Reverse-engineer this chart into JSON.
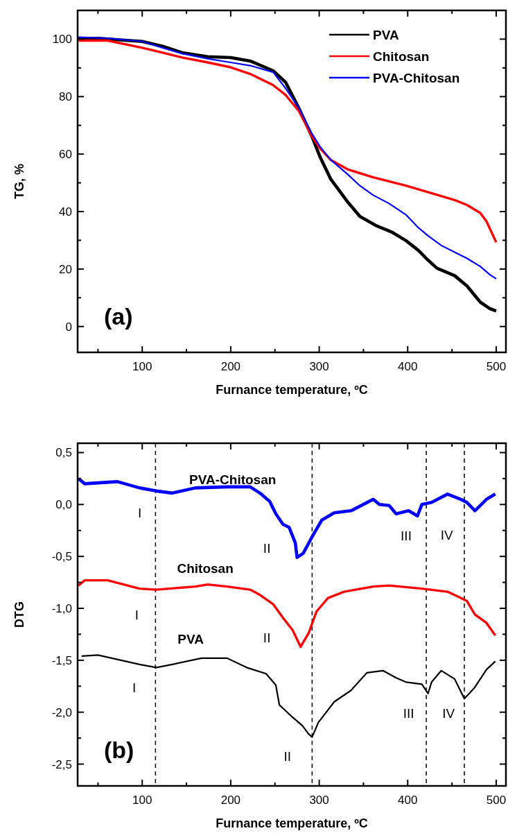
{
  "chart_data": [
    {
      "type": "line",
      "xlabel": "Furnance temperature, ºC",
      "ylabel": "TG, %",
      "xlim": [
        27,
        511
      ],
      "ylim": [
        -9,
        110
      ],
      "xticks": [
        {
          "value": 50,
          "label": null
        },
        100,
        {
          "value": 150,
          "label": null
        },
        200,
        {
          "value": 250,
          "label": null
        },
        300,
        {
          "value": 350,
          "label": null
        },
        400,
        {
          "value": 450,
          "label": null
        },
        500
      ],
      "yticks": [
        0,
        {
          "value": 10,
          "label": null
        },
        20,
        {
          "value": 30,
          "label": null
        },
        40,
        {
          "value": 50,
          "label": null
        },
        60,
        {
          "value": 70,
          "label": null
        },
        80,
        {
          "value": 90,
          "label": null
        },
        100
      ],
      "legend": "top right",
      "annotations": [
        "(a)"
      ],
      "series": [
        {
          "name": "PVA",
          "color": "#000000",
          "x": [
            28,
            50,
            100,
            123,
            145,
            174,
            200,
            222,
            248,
            262,
            277,
            292,
            301,
            313,
            332,
            346,
            365,
            383,
            398,
            412,
            423,
            433,
            453,
            467,
            482,
            493,
            500
          ],
          "values": [
            100.3,
            100.3,
            99.2,
            97.5,
            95.3,
            93.9,
            93.6,
            92.4,
            89,
            85,
            76,
            66,
            59,
            51.3,
            43.4,
            38.3,
            35,
            32.7,
            29.9,
            26.5,
            23.1,
            20.3,
            17.7,
            14.1,
            8.5,
            6.2,
            5.4
          ]
        },
        {
          "name": "Chitosan",
          "color": "#ff0000",
          "x": [
            28,
            61,
            100,
            123,
            145,
            174,
            200,
            222,
            248,
            262,
            277,
            292,
            301,
            313,
            332,
            361,
            398,
            416,
            453,
            467,
            482,
            489,
            500
          ],
          "values": [
            99.5,
            99.5,
            97,
            95.3,
            93.6,
            91.9,
            90.2,
            87.9,
            84,
            80.6,
            75,
            66,
            62,
            58,
            54.7,
            51.9,
            49,
            47.4,
            44,
            42.3,
            39.5,
            36.6,
            29.3
          ]
        },
        {
          "name": "PVA-Chitosan",
          "color": "#0000ff",
          "x": [
            28,
            61,
            100,
            123,
            145,
            174,
            200,
            222,
            248,
            262,
            277,
            292,
            301,
            313,
            332,
            346,
            361,
            379,
            398,
            412,
            423,
            438,
            453,
            467,
            482,
            493,
            500
          ],
          "values": [
            100.7,
            100.3,
            99.2,
            97,
            95,
            93.2,
            91.9,
            90.8,
            88.5,
            82.9,
            76.1,
            67,
            62.6,
            58,
            53,
            49,
            45.7,
            42.8,
            38.9,
            34.4,
            31.6,
            28.2,
            25.9,
            23.7,
            20.9,
            18,
            16.6
          ]
        }
      ]
    },
    {
      "type": "line",
      "xlabel": "Furnance temperature, ºC",
      "ylabel": "DTG",
      "xlim": [
        27,
        511
      ],
      "ylim": [
        -2.71,
        0.59
      ],
      "xticks": [
        {
          "value": 50,
          "label": null
        },
        100,
        {
          "value": 150,
          "label": null
        },
        200,
        {
          "value": 250,
          "label": null
        },
        300,
        {
          "value": 350,
          "label": null
        },
        400,
        {
          "value": 450,
          "label": null
        },
        500
      ],
      "yticks": [
        {
          "value": -2.5,
          "label": "-2,5"
        },
        {
          "value": -2.25,
          "label": null
        },
        {
          "value": -2,
          "label": "-2,0"
        },
        {
          "value": -1.75,
          "label": null
        },
        {
          "value": -1.5,
          "label": "-1,5"
        },
        {
          "value": -1.25,
          "label": null
        },
        {
          "value": -1,
          "label": "-1,0"
        },
        {
          "value": -0.75,
          "label": null
        },
        {
          "value": -0.5,
          "label": "-0,5"
        },
        {
          "value": -0.25,
          "label": null
        },
        {
          "value": 0,
          "label": "0,0"
        },
        {
          "value": 0.25,
          "label": null
        },
        {
          "value": 0.5,
          "label": "0,5"
        }
      ],
      "ref_lines": [
        {
          "axis": "x",
          "value": 115,
          "color": "#000000",
          "line_style": "dashed"
        },
        {
          "axis": "x",
          "value": 292,
          "color": "#000000",
          "line_style": "dashed"
        },
        {
          "axis": "x",
          "value": 421,
          "color": "#000000",
          "line_style": "dashed"
        },
        {
          "axis": "x",
          "value": 464,
          "color": "#000000",
          "line_style": "dashed"
        }
      ],
      "annotations": [
        "(b)",
        "I",
        "II",
        "III",
        "IV",
        "I",
        "II",
        "I",
        "III",
        "IV",
        "II"
      ],
      "series": [
        {
          "name": "PVA-Chitosan",
          "color": "#0000ff",
          "x": [
            28,
            35,
            72,
            97,
            116,
            134,
            160,
            196,
            222,
            233,
            244,
            251,
            259,
            266,
            273,
            275,
            282,
            292,
            303,
            317,
            336,
            361,
            368,
            379,
            387,
            401,
            411,
            416,
            427,
            445,
            460,
            467,
            476,
            489,
            499
          ],
          "values": [
            0.25,
            0.2,
            0.22,
            0.16,
            0.13,
            0.11,
            0.16,
            0.17,
            0.17,
            0.11,
            0.03,
            -0.09,
            -0.19,
            -0.22,
            -0.37,
            -0.51,
            -0.47,
            -0.31,
            -0.15,
            -0.08,
            -0.06,
            0.05,
            0,
            -0.01,
            -0.09,
            -0.06,
            -0.11,
            0,
            0.02,
            0.1,
            0.05,
            0.02,
            -0.06,
            0.05,
            0.1
          ]
        },
        {
          "name": "Chitosan",
          "color": "#ff0000",
          "x": [
            28,
            35,
            61,
            97,
            116,
            160,
            174,
            196,
            222,
            233,
            248,
            259,
            270,
            279,
            288,
            297,
            310,
            328,
            361,
            379,
            416,
            445,
            460,
            467,
            476,
            489,
            499
          ],
          "values": [
            -0.78,
            -0.73,
            -0.73,
            -0.81,
            -0.82,
            -0.79,
            -0.77,
            -0.79,
            -0.82,
            -0.87,
            -0.96,
            -1.09,
            -1.21,
            -1.37,
            -1.24,
            -1.03,
            -0.9,
            -0.84,
            -0.79,
            -0.78,
            -0.81,
            -0.84,
            -0.9,
            -0.93,
            -1.06,
            -1.14,
            -1.26
          ]
        },
        {
          "name": "PVA",
          "color": "#000000",
          "x": [
            31.5,
            50,
            97,
            116,
            134,
            167,
            196,
            218,
            240,
            251,
            255,
            270,
            281,
            288,
            292,
            299,
            317,
            336,
            354,
            372,
            387,
            398,
            416,
            423,
            427,
            438,
            453,
            464,
            475,
            489,
            499
          ],
          "values": [
            -1.46,
            -1.45,
            -1.54,
            -1.57,
            -1.54,
            -1.48,
            -1.48,
            -1.57,
            -1.63,
            -1.74,
            -1.93,
            -2.05,
            -2.13,
            -2.21,
            -2.24,
            -2.1,
            -1.9,
            -1.79,
            -1.62,
            -1.6,
            -1.67,
            -1.71,
            -1.73,
            -1.82,
            -1.71,
            -1.6,
            -1.68,
            -1.87,
            -1.77,
            -1.59,
            -1.51
          ]
        }
      ]
    }
  ]
}
